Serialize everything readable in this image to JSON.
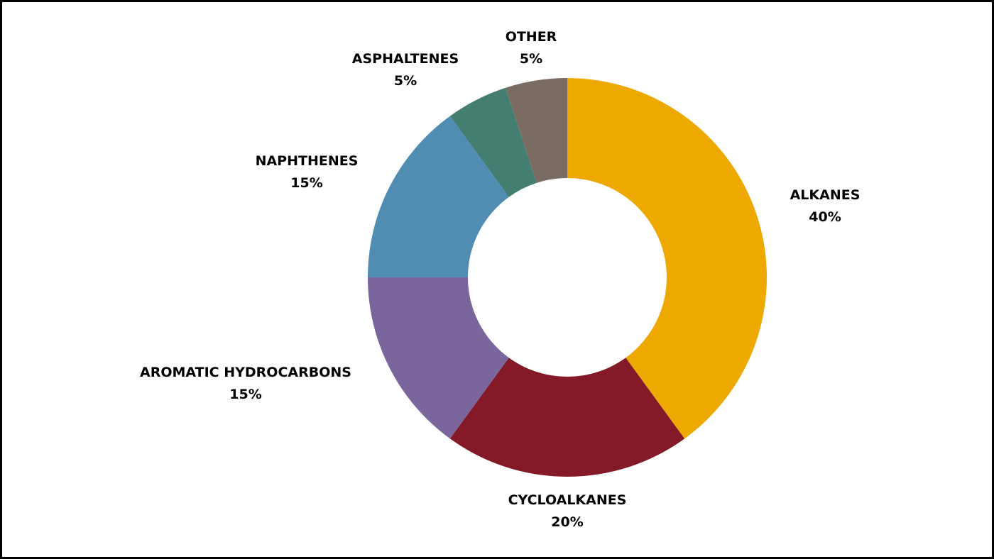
{
  "chart_data": {
    "type": "pie",
    "donut": true,
    "title": "",
    "categories": [
      "ALKANES",
      "CYCLOALKANES",
      "AROMATIC HYDROCARBONS",
      "NAPHTHENES",
      "ASPHALTENES",
      "OTHER"
    ],
    "values": [
      40,
      20,
      15,
      15,
      5,
      5
    ],
    "value_labels": [
      "40%",
      "20%",
      "15%",
      "15%",
      "5%",
      "5%"
    ],
    "colors": [
      "#EDA900",
      "#841927",
      "#7B659D",
      "#518CB2",
      "#437E70",
      "#7B6C63"
    ],
    "legend": "none"
  }
}
